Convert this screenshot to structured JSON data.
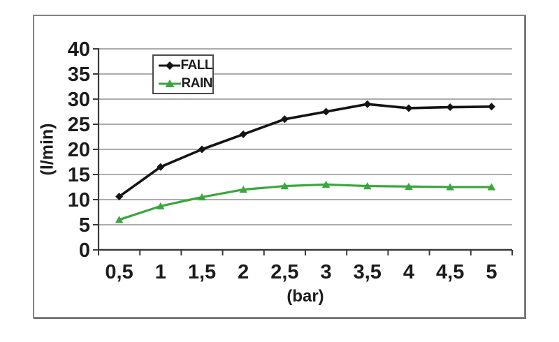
{
  "figure": {
    "background": "#ffffff",
    "frame_color": "#828282"
  },
  "chart_data": {
    "type": "line",
    "title": "",
    "xlabel": "(bar)",
    "ylabel": "(l/min)",
    "categories": [
      "0,5",
      "1",
      "1,5",
      "2",
      "2,5",
      "3",
      "3,5",
      "4",
      "4,5",
      "5"
    ],
    "x_numeric": [
      0.5,
      1,
      1.5,
      2,
      2.5,
      3,
      3.5,
      4,
      4.5,
      5
    ],
    "ylim": [
      0,
      40
    ],
    "y_tick_step": 5,
    "y_ticks": [
      "0",
      "5",
      "10",
      "15",
      "20",
      "25",
      "30",
      "35",
      "40"
    ],
    "grid": "horizontal",
    "legend": {
      "position": "inside-top-left-of-center",
      "border": true,
      "background": "#ffffff"
    },
    "series": [
      {
        "name": "FALL",
        "color": "#141414",
        "marker": "diamond",
        "values": [
          10.6,
          16.5,
          20,
          23,
          26,
          27.5,
          29,
          28.2,
          28.4,
          28.5
        ]
      },
      {
        "name": "RAIN",
        "color": "#3aa63e",
        "marker": "triangle",
        "values": [
          6,
          8.7,
          10.5,
          12,
          12.7,
          13,
          12.7,
          12.6,
          12.5,
          12.5
        ]
      }
    ],
    "colors": {
      "grid": "#8f8f8f",
      "axis": "#3a3a3a",
      "text": "#1c1c1c"
    }
  }
}
